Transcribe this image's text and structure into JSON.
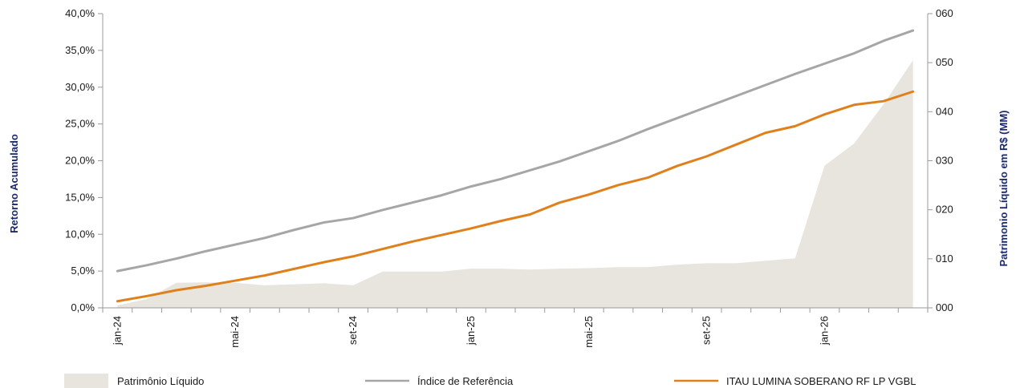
{
  "chart_data": {
    "type": "line",
    "x_labels": [
      "jan-24",
      "mai-24",
      "set-24",
      "jan-25",
      "mai-25",
      "set-25",
      "jan-26"
    ],
    "x_label_positions": [
      0,
      4,
      8,
      12,
      16,
      20,
      24
    ],
    "n_periods": 28,
    "ylabel_left": "Retorno Acumulado",
    "ylabel_right": "Patrimonio Líquido em R$ (MM)",
    "y_left_ticks": [
      "0,0%",
      "5,0%",
      "10,0%",
      "15,0%",
      "20,0%",
      "25,0%",
      "30,0%",
      "35,0%",
      "40,0%"
    ],
    "y_right_ticks": [
      "000",
      "010",
      "020",
      "030",
      "040",
      "050",
      "060"
    ],
    "ylim_left": [
      0,
      40
    ],
    "ylim_right": [
      0,
      60
    ],
    "series": [
      {
        "name": "Patrimônio Líquido",
        "kind": "area",
        "axis": "right",
        "color": "#e8e4de",
        "values": [
          0.5,
          1.8,
          5.1,
          5.2,
          5.1,
          4.6,
          4.8,
          5.0,
          4.6,
          7.4,
          7.4,
          7.4,
          8.0,
          8.0,
          7.8,
          8.0,
          8.1,
          8.3,
          8.3,
          8.8,
          9.1,
          9.1,
          9.6,
          10.1,
          29.0,
          33.5,
          41.5,
          50.5
        ]
      },
      {
        "name": "Índice de Referência",
        "kind": "line",
        "axis": "left",
        "color": "#a6a6a6",
        "values": [
          5.0,
          5.8,
          6.7,
          7.7,
          8.6,
          9.5,
          10.6,
          11.6,
          12.2,
          13.3,
          14.3,
          15.3,
          16.5,
          17.5,
          18.7,
          19.9,
          21.3,
          22.7,
          24.3,
          25.8,
          27.3,
          28.8,
          30.3,
          31.8,
          33.2,
          34.6,
          36.3,
          37.7
        ]
      },
      {
        "name": "ITAU LUMINA SOBERANO RF LP VGBL",
        "kind": "line",
        "axis": "left",
        "color": "#e0801c",
        "values": [
          0.9,
          1.6,
          2.4,
          3.0,
          3.7,
          4.4,
          5.3,
          6.2,
          7.0,
          8.0,
          9.0,
          9.9,
          10.8,
          11.8,
          12.7,
          14.3,
          15.4,
          16.7,
          17.7,
          19.3,
          20.6,
          22.2,
          23.8,
          24.7,
          26.3,
          27.6,
          28.1,
          29.4
        ]
      }
    ]
  }
}
